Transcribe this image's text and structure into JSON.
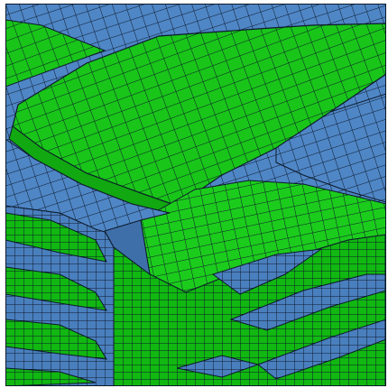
{
  "viewer": {
    "content": "finite-element-mesh",
    "colors": {
      "blue_material": "#4f86c6",
      "blue_material_dark": "#3f6fa8",
      "green_material": "#19c519",
      "green_material_light": "#38d838",
      "green_material_dark": "#11a811",
      "mesh_line": "#0d1a2a",
      "background": "#ffffff"
    }
  }
}
